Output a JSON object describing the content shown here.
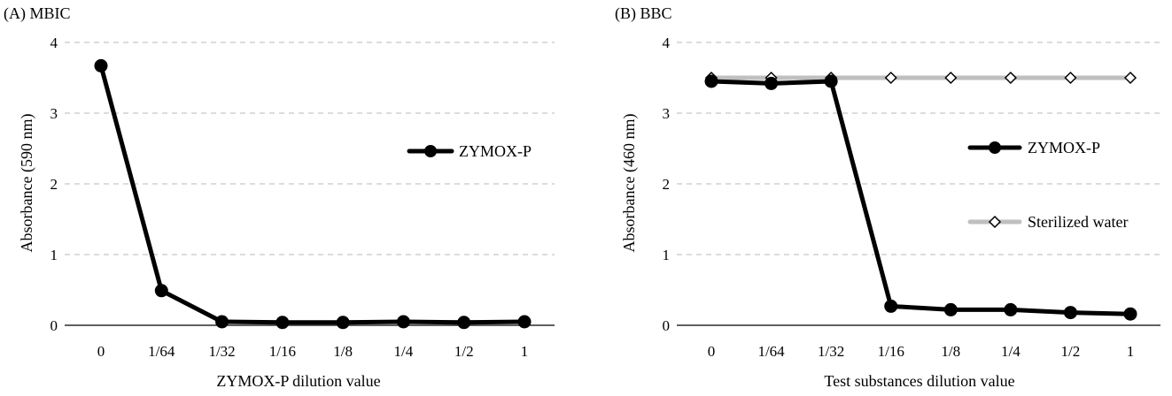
{
  "chart_data": [
    {
      "type": "line",
      "panel_label": "(A) MBIC",
      "categories": [
        "0",
        "1/64",
        "1/32",
        "1/16",
        "1/8",
        "1/4",
        "1/2",
        "1"
      ],
      "xlabel": "ZYMOX-P dilution value",
      "ylabel": "Absorbance (590 nm)",
      "ylim": [
        0,
        4
      ],
      "yticks": [
        "0",
        "1",
        "2",
        "3",
        "4"
      ],
      "grid": "horizontal-dashed",
      "legend_position": "right",
      "series": [
        {
          "name": "ZYMOX-P",
          "color": "#000000",
          "marker": "filled-circle",
          "values": [
            3.67,
            0.49,
            0.05,
            0.04,
            0.04,
            0.05,
            0.04,
            0.05
          ]
        }
      ]
    },
    {
      "type": "line",
      "panel_label": "(B) BBC",
      "categories": [
        "0",
        "1/64",
        "1/32",
        "1/16",
        "1/8",
        "1/4",
        "1/2",
        "1"
      ],
      "xlabel": "Test substances dilution value",
      "ylabel": "Absorbance (460 nm)",
      "ylim": [
        0,
        4
      ],
      "yticks": [
        "0",
        "1",
        "2",
        "3",
        "4"
      ],
      "grid": "horizontal-dashed",
      "legend_position": "right",
      "series": [
        {
          "name": "ZYMOX-P",
          "color": "#000000",
          "marker": "filled-circle",
          "values": [
            3.45,
            3.42,
            3.45,
            0.27,
            0.22,
            0.22,
            0.18,
            0.16
          ]
        },
        {
          "name": "Sterilized water",
          "color": "#bfbfbf",
          "marker": "open-diamond",
          "values": [
            3.5,
            3.5,
            3.5,
            3.5,
            3.5,
            3.5,
            3.5,
            3.5
          ]
        }
      ]
    }
  ]
}
